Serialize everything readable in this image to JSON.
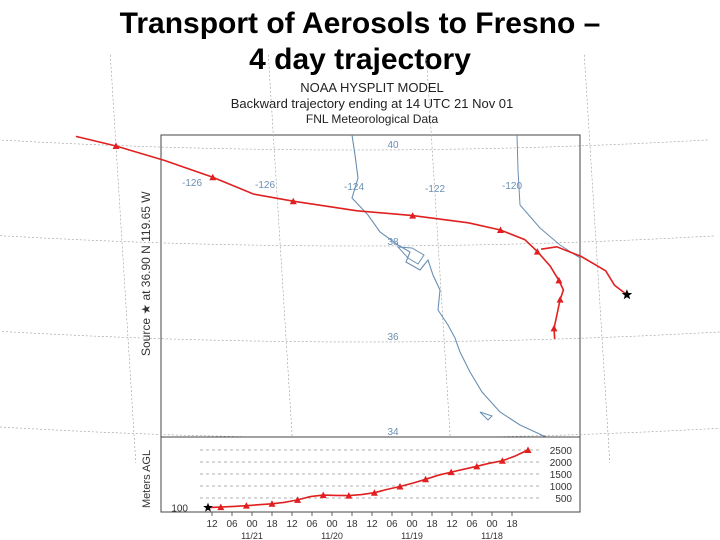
{
  "slide": {
    "title_line1": "Transport of Aerosols to Fresno –",
    "title_line2": "4 day trajectory"
  },
  "chart_data": {
    "type": "line",
    "header": [
      "NOAA HYSPLIT MODEL",
      "Backward trajectory ending at 14 UTC 21 Nov 01",
      "FNL  Meteorological Data"
    ],
    "source_label": "Source ★ at  36.90 N  119.65 W",
    "map": {
      "lon_labels": [
        "-126",
        "-126",
        "-124",
        "-122",
        "-120"
      ],
      "lat_labels": [
        "40",
        "38",
        "36",
        "34"
      ],
      "source_lon": -119.65,
      "source_lat": 36.9
    },
    "trajectory_lonlat": [
      [
        -126.5,
        40.2
      ],
      [
        -126.0,
        40.0
      ],
      [
        -125.4,
        39.7
      ],
      [
        -124.8,
        39.35
      ],
      [
        -124.3,
        39.0
      ],
      [
        -123.8,
        38.85
      ],
      [
        -123.0,
        38.65
      ],
      [
        -122.3,
        38.55
      ],
      [
        -121.6,
        38.4
      ],
      [
        -121.2,
        38.25
      ],
      [
        -120.9,
        38.05
      ],
      [
        -120.75,
        37.8
      ],
      [
        -120.6,
        37.5
      ],
      [
        -120.5,
        37.2
      ],
      [
        -120.45,
        37.0
      ],
      [
        -120.5,
        36.8
      ],
      [
        -120.55,
        36.5
      ],
      [
        -120.6,
        36.2
      ],
      [
        -120.6,
        35.98
      ]
    ],
    "hook_lonlat": [
      [
        -120.7,
        37.85
      ],
      [
        -120.5,
        37.9
      ],
      [
        -120.2,
        37.7
      ],
      [
        -119.9,
        37.4
      ],
      [
        -119.8,
        37.1
      ],
      [
        -119.65,
        36.9
      ]
    ],
    "vertical": {
      "ylabel": "Meters AGL",
      "yticks": [
        500,
        1000,
        1500,
        2000,
        2500
      ],
      "ylim": [
        0,
        2900
      ],
      "start_label": "100",
      "x_tick_labels": [
        "12",
        "06",
        "00",
        "18",
        "12",
        "06",
        "00",
        "18",
        "12",
        "06",
        "00",
        "18",
        "12",
        "06",
        "00",
        "18"
      ],
      "date_labels": [
        "11/21",
        "11/20",
        "11/19",
        "11/18"
      ],
      "heights": [
        100,
        120,
        150,
        180,
        220,
        260,
        320,
        420,
        560,
        620,
        610,
        600,
        640,
        720,
        860,
        980,
        1120,
        1280,
        1450,
        1580,
        1700,
        1820,
        1950,
        2050,
        2250,
        2500
      ]
    },
    "colors": {
      "trajectory": "#e02020",
      "map_lines": "#6a8fb3",
      "grid": "#999999"
    }
  }
}
